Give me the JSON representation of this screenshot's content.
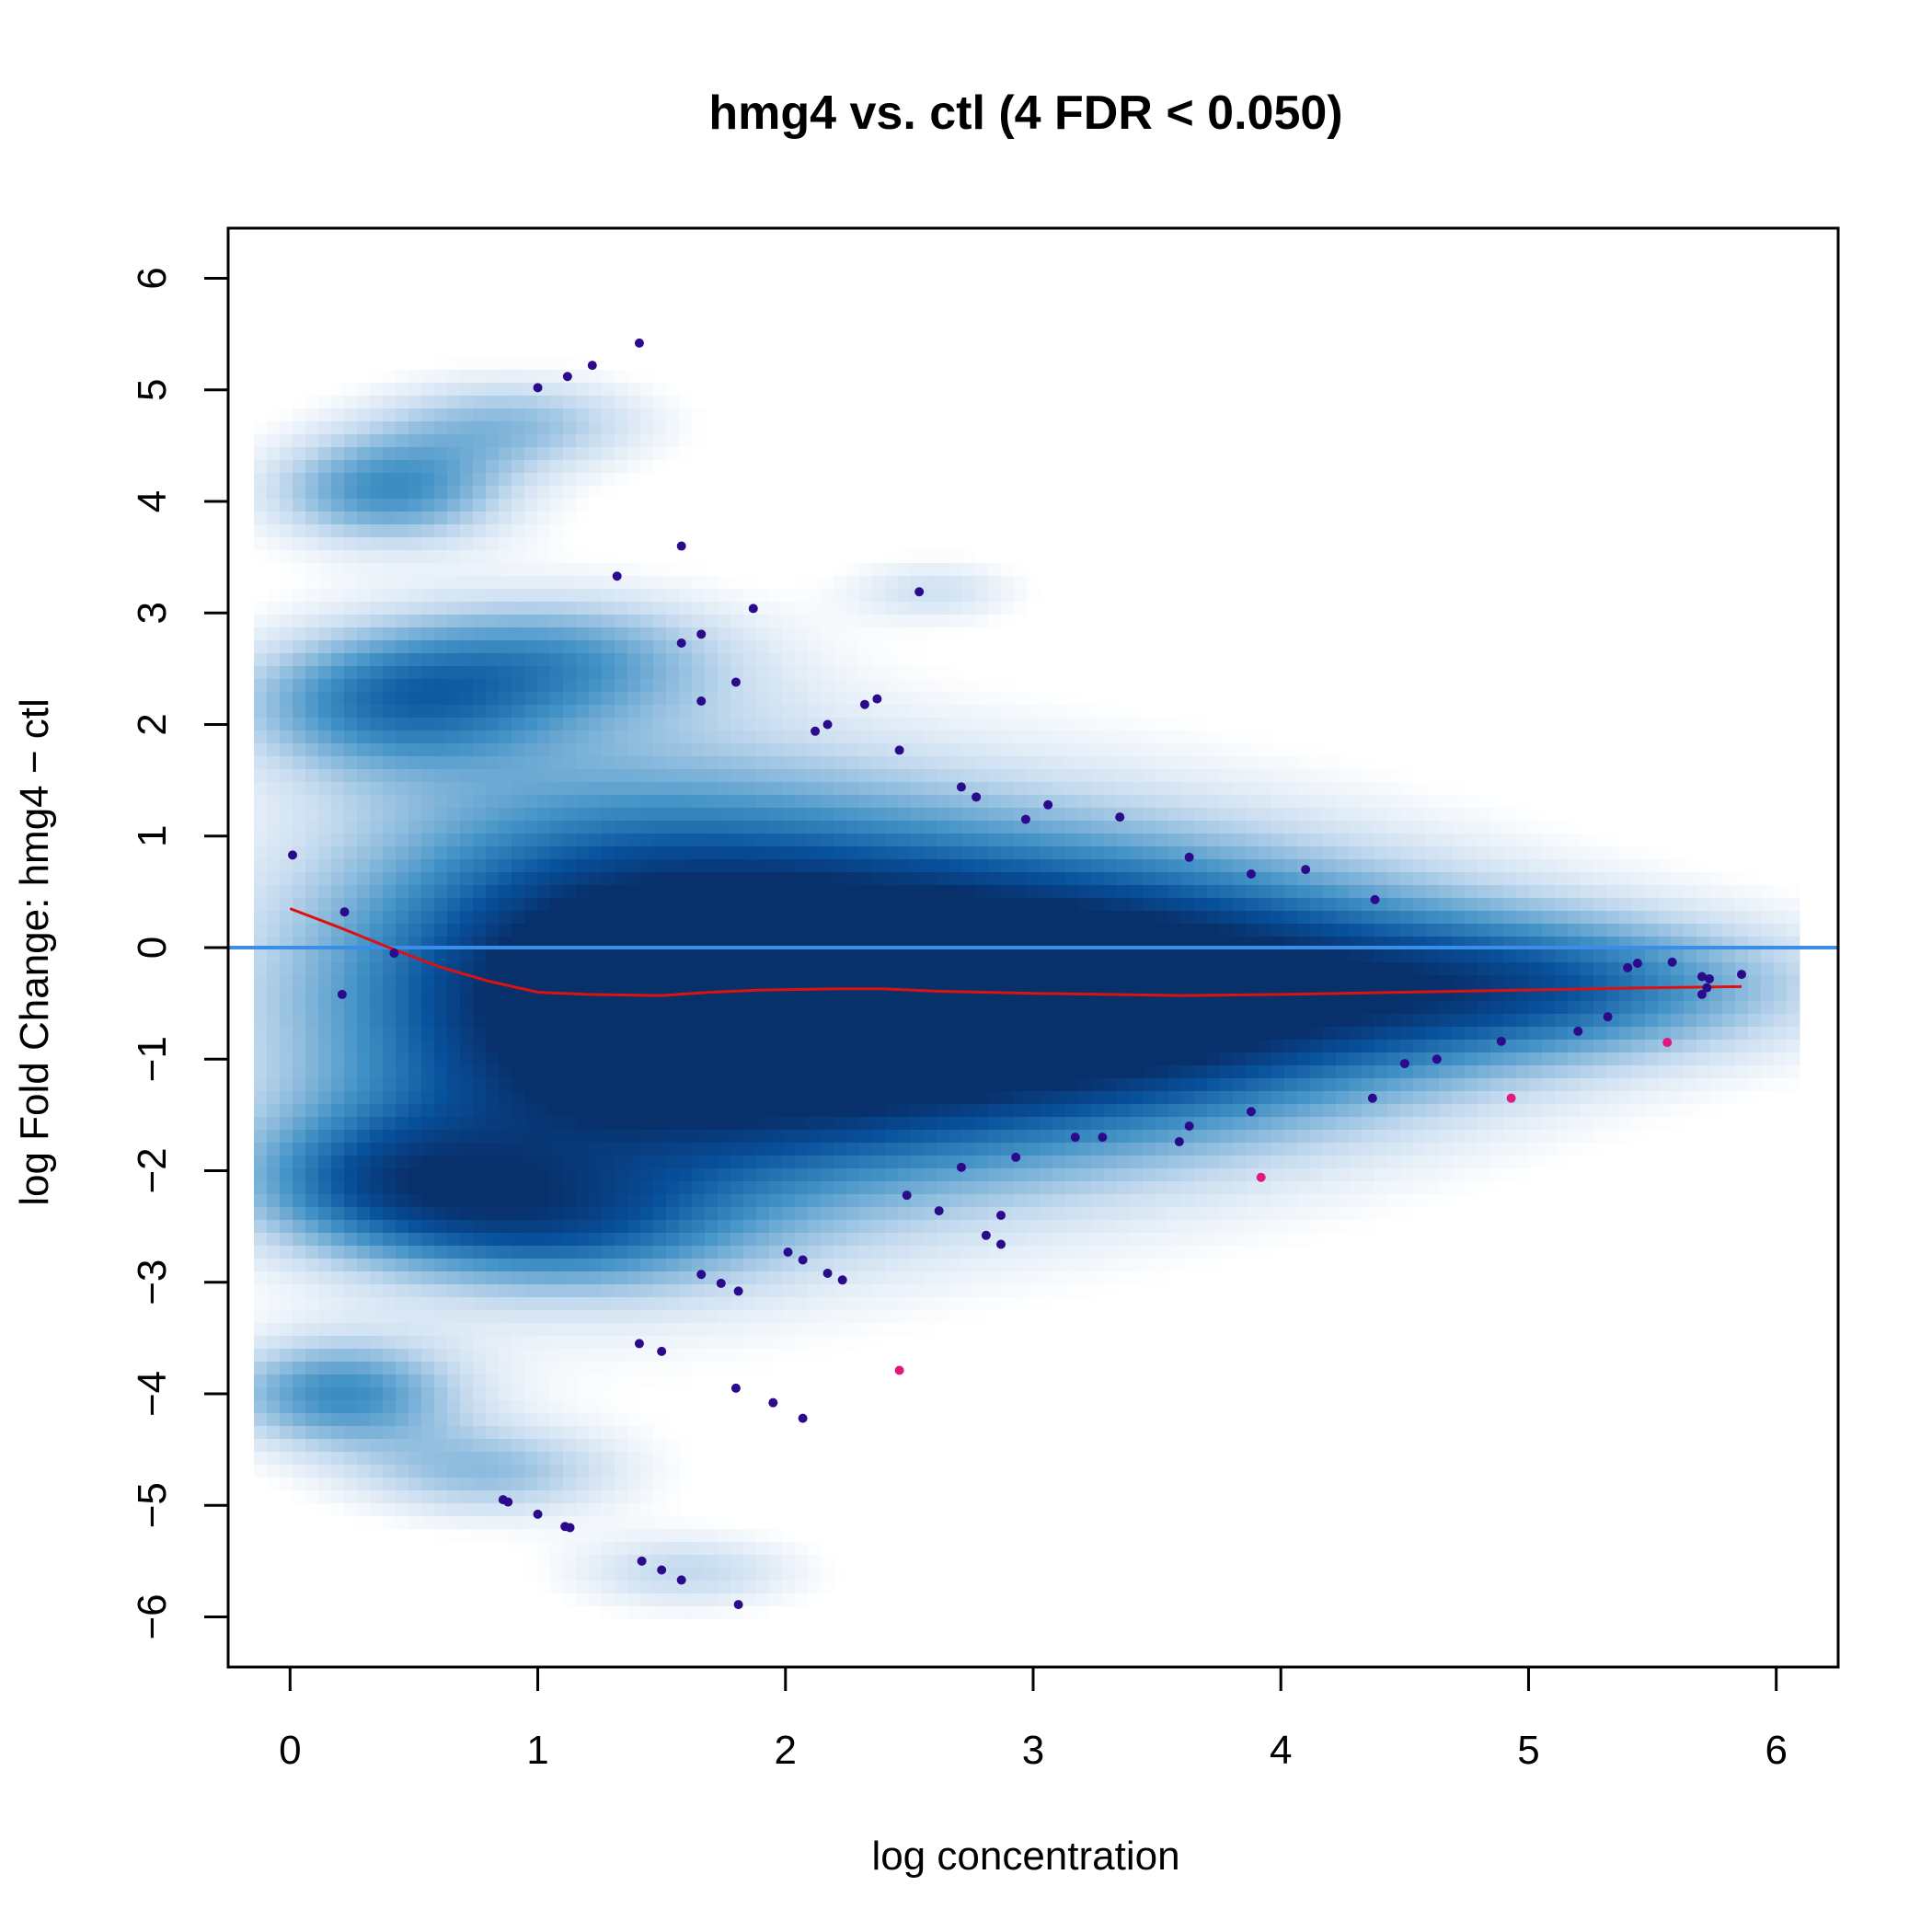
{
  "chart_data": {
    "type": "scatter",
    "title": "hmg4 vs. ctl (4 FDR < 0.050)",
    "xlabel": "log concentration",
    "ylabel": "log Fold Change: hmg4 − ctl",
    "xlim": [
      -0.25,
      6.25
    ],
    "ylim": [
      -6.45,
      6.45
    ],
    "x_ticks": [
      0,
      1,
      2,
      3,
      4,
      5,
      6
    ],
    "x_tick_labels": [
      "0",
      "1",
      "2",
      "3",
      "4",
      "5",
      "6"
    ],
    "y_ticks": [
      -6,
      -5,
      -4,
      -3,
      -2,
      -1,
      0,
      1,
      2,
      3,
      4,
      5,
      6
    ],
    "y_tick_labels": [
      "−6",
      "−5",
      "−4",
      "−3",
      "−2",
      "−1",
      "0",
      "1",
      "2",
      "3",
      "4",
      "5",
      "6"
    ],
    "grid": false,
    "colors": {
      "points": "#2b0b8c",
      "significant": "#e0187f",
      "loess": "#dd1111",
      "zero_line": "#3b8ee8",
      "density_dark": "#08306b",
      "density_mid": "#2c7bc0",
      "density_light": "#c6dbef"
    },
    "density": [
      {
        "x": 2.2,
        "y": -0.45,
        "sx": 1.15,
        "sy": 1.15,
        "w": 1.0
      },
      {
        "x": 3.6,
        "y": -0.4,
        "sx": 1.0,
        "sy": 0.8,
        "w": 0.75
      },
      {
        "x": 5.1,
        "y": -0.35,
        "sx": 0.75,
        "sy": 0.45,
        "w": 0.55
      },
      {
        "x": 1.2,
        "y": -0.5,
        "sx": 0.8,
        "sy": 1.5,
        "w": 0.6
      },
      {
        "x": 0.4,
        "y": 4.1,
        "sx": 0.35,
        "sy": 0.35,
        "w": 0.55
      },
      {
        "x": 0.9,
        "y": 4.7,
        "sx": 0.4,
        "sy": 0.3,
        "w": 0.35
      },
      {
        "x": 0.4,
        "y": 2.2,
        "sx": 0.45,
        "sy": 0.45,
        "w": 0.55
      },
      {
        "x": 1.1,
        "y": 2.6,
        "sx": 0.5,
        "sy": 0.4,
        "w": 0.4
      },
      {
        "x": 0.4,
        "y": -2.1,
        "sx": 0.45,
        "sy": 0.45,
        "w": 0.55
      },
      {
        "x": 1.1,
        "y": -2.5,
        "sx": 0.5,
        "sy": 0.4,
        "w": 0.4
      },
      {
        "x": 0.2,
        "y": -4.0,
        "sx": 0.35,
        "sy": 0.35,
        "w": 0.55
      },
      {
        "x": 0.8,
        "y": -4.7,
        "sx": 0.4,
        "sy": 0.3,
        "w": 0.35
      },
      {
        "x": 1.6,
        "y": -5.6,
        "sx": 0.35,
        "sy": 0.25,
        "w": 0.25
      },
      {
        "x": 2.6,
        "y": 3.2,
        "sx": 0.25,
        "sy": 0.2,
        "w": 0.2
      }
    ],
    "points": [
      {
        "x": 0.01,
        "y": 0.83
      },
      {
        "x": 0.22,
        "y": 0.32
      },
      {
        "x": 0.21,
        "y": -0.42
      },
      {
        "x": 0.42,
        "y": -0.05
      },
      {
        "x": 1.0,
        "y": 5.02
      },
      {
        "x": 1.12,
        "y": 5.12
      },
      {
        "x": 1.22,
        "y": 5.22
      },
      {
        "x": 1.41,
        "y": 5.42
      },
      {
        "x": 1.32,
        "y": 3.33
      },
      {
        "x": 1.58,
        "y": 3.6
      },
      {
        "x": 1.87,
        "y": 3.04
      },
      {
        "x": 1.58,
        "y": 2.73
      },
      {
        "x": 1.66,
        "y": 2.81
      },
      {
        "x": 1.8,
        "y": 2.38
      },
      {
        "x": 1.66,
        "y": 2.21
      },
      {
        "x": 2.54,
        "y": 3.19
      },
      {
        "x": 2.32,
        "y": 2.18
      },
      {
        "x": 2.37,
        "y": 2.23
      },
      {
        "x": 2.12,
        "y": 1.94
      },
      {
        "x": 2.17,
        "y": 2.0
      },
      {
        "x": 2.46,
        "y": 1.77
      },
      {
        "x": 2.71,
        "y": 1.44
      },
      {
        "x": 2.77,
        "y": 1.35
      },
      {
        "x": 2.97,
        "y": 1.15
      },
      {
        "x": 3.06,
        "y": 1.28
      },
      {
        "x": 3.35,
        "y": 1.17
      },
      {
        "x": 3.63,
        "y": 0.81
      },
      {
        "x": 3.88,
        "y": 0.66
      },
      {
        "x": 4.1,
        "y": 0.7
      },
      {
        "x": 4.38,
        "y": 0.43
      },
      {
        "x": 5.4,
        "y": -0.18
      },
      {
        "x": 5.44,
        "y": -0.14
      },
      {
        "x": 5.58,
        "y": -0.13
      },
      {
        "x": 5.7,
        "y": -0.26
      },
      {
        "x": 5.73,
        "y": -0.28
      },
      {
        "x": 5.86,
        "y": -0.24
      },
      {
        "x": 5.72,
        "y": -0.36
      },
      {
        "x": 5.7,
        "y": -0.42
      },
      {
        "x": 4.89,
        "y": -0.84
      },
      {
        "x": 5.2,
        "y": -0.75
      },
      {
        "x": 5.32,
        "y": -0.62
      },
      {
        "x": 4.5,
        "y": -1.04
      },
      {
        "x": 4.63,
        "y": -1.0
      },
      {
        "x": 4.37,
        "y": -1.35
      },
      {
        "x": 3.88,
        "y": -1.47
      },
      {
        "x": 3.63,
        "y": -1.6
      },
      {
        "x": 3.59,
        "y": -1.74
      },
      {
        "x": 3.17,
        "y": -1.7
      },
      {
        "x": 3.28,
        "y": -1.7
      },
      {
        "x": 2.93,
        "y": -1.88
      },
      {
        "x": 2.71,
        "y": -1.97
      },
      {
        "x": 2.49,
        "y": -2.22
      },
      {
        "x": 2.62,
        "y": -2.36
      },
      {
        "x": 2.87,
        "y": -2.4
      },
      {
        "x": 2.81,
        "y": -2.58
      },
      {
        "x": 2.87,
        "y": -2.66
      },
      {
        "x": 2.01,
        "y": -2.73
      },
      {
        "x": 2.07,
        "y": -2.8
      },
      {
        "x": 2.17,
        "y": -2.92
      },
      {
        "x": 2.23,
        "y": -2.98
      },
      {
        "x": 1.66,
        "y": -2.93
      },
      {
        "x": 1.74,
        "y": -3.01
      },
      {
        "x": 1.81,
        "y": -3.08
      },
      {
        "x": 1.41,
        "y": -3.55
      },
      {
        "x": 1.5,
        "y": -3.62
      },
      {
        "x": 1.8,
        "y": -3.95
      },
      {
        "x": 1.95,
        "y": -4.08
      },
      {
        "x": 2.07,
        "y": -4.22
      },
      {
        "x": 0.86,
        "y": -4.95
      },
      {
        "x": 0.88,
        "y": -4.97
      },
      {
        "x": 1.0,
        "y": -5.08
      },
      {
        "x": 1.11,
        "y": -5.19
      },
      {
        "x": 1.13,
        "y": -5.2
      },
      {
        "x": 1.42,
        "y": -5.5
      },
      {
        "x": 1.5,
        "y": -5.58
      },
      {
        "x": 1.58,
        "y": -5.67
      },
      {
        "x": 1.81,
        "y": -5.89
      }
    ],
    "significant_points": [
      {
        "x": 2.46,
        "y": -3.79
      },
      {
        "x": 3.92,
        "y": -2.06
      },
      {
        "x": 4.93,
        "y": -1.35
      },
      {
        "x": 5.56,
        "y": -0.85
      }
    ],
    "loess_line": {
      "x": [
        0.0,
        0.2,
        0.4,
        0.6,
        0.8,
        1.0,
        1.2,
        1.5,
        1.7,
        1.9,
        2.2,
        2.4,
        2.6,
        2.8,
        3.0,
        3.3,
        3.6,
        4.0,
        4.5,
        5.0,
        5.5,
        5.86
      ],
      "y": [
        0.35,
        0.18,
        0.0,
        -0.17,
        -0.3,
        -0.4,
        -0.42,
        -0.43,
        -0.4,
        -0.38,
        -0.37,
        -0.37,
        -0.39,
        -0.4,
        -0.41,
        -0.42,
        -0.43,
        -0.42,
        -0.4,
        -0.38,
        -0.36,
        -0.35
      ]
    },
    "zero_line_y": 0
  }
}
